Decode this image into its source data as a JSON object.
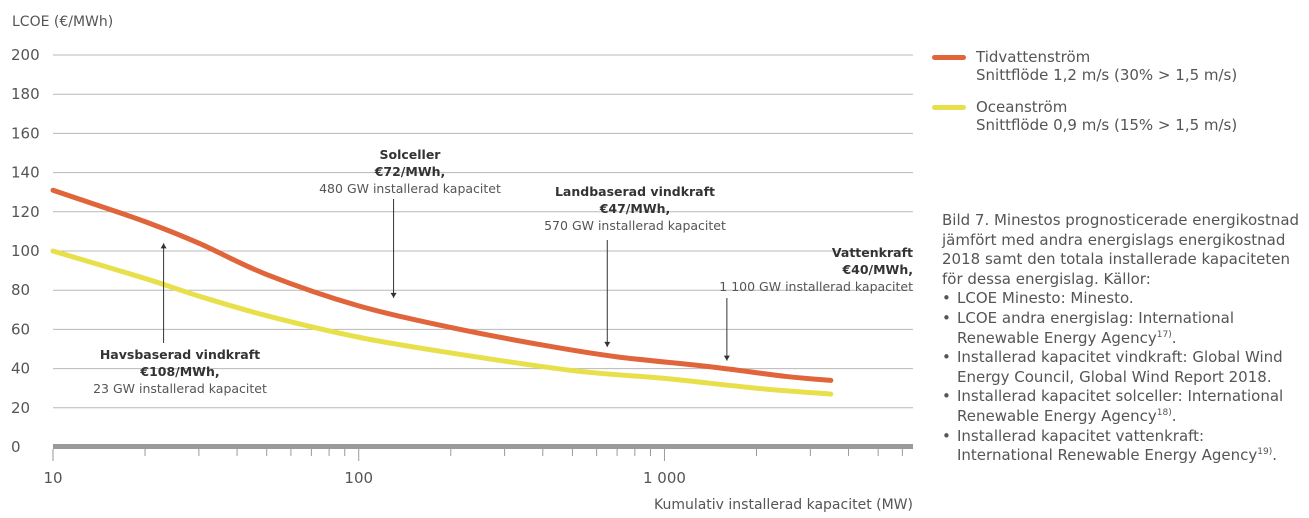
{
  "chart_data": {
    "type": "line",
    "ylabel": "LCOE (€/MWh)",
    "xlabel": "Kumulativ installerad kapacitet (MW)",
    "x_scale": "log",
    "xlim": [
      10,
      6500
    ],
    "ylim": [
      0,
      200
    ],
    "y_ticks": [
      "0",
      "20",
      "40",
      "60",
      "80",
      "100",
      "120",
      "140",
      "160",
      "180",
      "200"
    ],
    "x_tick_values": [
      10,
      100,
      1000
    ],
    "x_tick_labels": [
      "10",
      "100",
      "1 000"
    ],
    "grid": "horizontal",
    "legend_position": "top-right",
    "series": [
      {
        "name": "Tidvattenström",
        "subtitle": "Snittflöde  1,2 m/s (30% > 1,5 m/s)",
        "color": "#e0653a",
        "points": [
          [
            10,
            131
          ],
          [
            13,
            125
          ],
          [
            20,
            115
          ],
          [
            30,
            104
          ],
          [
            50,
            88
          ],
          [
            100,
            72
          ],
          [
            200,
            61
          ],
          [
            400,
            52
          ],
          [
            700,
            46
          ],
          [
            1400,
            41
          ],
          [
            2500,
            36
          ],
          [
            3500,
            34
          ]
        ]
      },
      {
        "name": "Oceanström",
        "subtitle": "Snittflöde  0,9 m/s (15% > 1,5 m/s)",
        "color": "#e8e04a",
        "points": [
          [
            10,
            100
          ],
          [
            20,
            86
          ],
          [
            30,
            77
          ],
          [
            50,
            67
          ],
          [
            100,
            56
          ],
          [
            200,
            48
          ],
          [
            500,
            39
          ],
          [
            1000,
            35
          ],
          [
            2000,
            30
          ],
          [
            3500,
            27
          ]
        ]
      }
    ],
    "annotations": [
      {
        "title": "Havsbaserad vindkraft",
        "value": "€108/MWh,",
        "capacity": "23 GW installerad kapacitet",
        "x": 23,
        "y": 108,
        "arrow": "up"
      },
      {
        "title": "Solceller",
        "value": "€72/MWh,",
        "capacity": "480 GW installerad kapacitet",
        "x": 130,
        "y": 72,
        "arrow": "down"
      },
      {
        "title": "Landbaserad vindkraft",
        "value": "€47/MWh,",
        "capacity": "570 GW installerad kapacitet",
        "x": 650,
        "y": 47,
        "arrow": "down"
      },
      {
        "title": "Vattenkraft",
        "value": "€40/MWh,",
        "capacity": "1 100 GW installerad kapacitet",
        "x": 1600,
        "y": 40,
        "arrow": "down"
      }
    ]
  },
  "caption": {
    "text": "Bild 7. Minestos prognosticerade energikostnad jämfört med andra energislags energikostnad 2018 samt den totala installerade kapaciteten för dessa energislag. Källor:",
    "sources": [
      {
        "text": "LCOE Minesto: Minesto.",
        "ref": ""
      },
      {
        "text": "LCOE andra energislag: International Renewable Energy Agency",
        "ref": "17)"
      },
      {
        "text": "Installerad kapacitet vindkraft: Global Wind Energy Council, Global Wind Report 2018.",
        "ref": ""
      },
      {
        "text": "Installerad kapacitet solceller: International Renewable Energy Agency",
        "ref": "18)"
      },
      {
        "text": "Installerad kapacitet vattenkraft: International Renewable Energy Agency",
        "ref": "19)"
      }
    ]
  }
}
